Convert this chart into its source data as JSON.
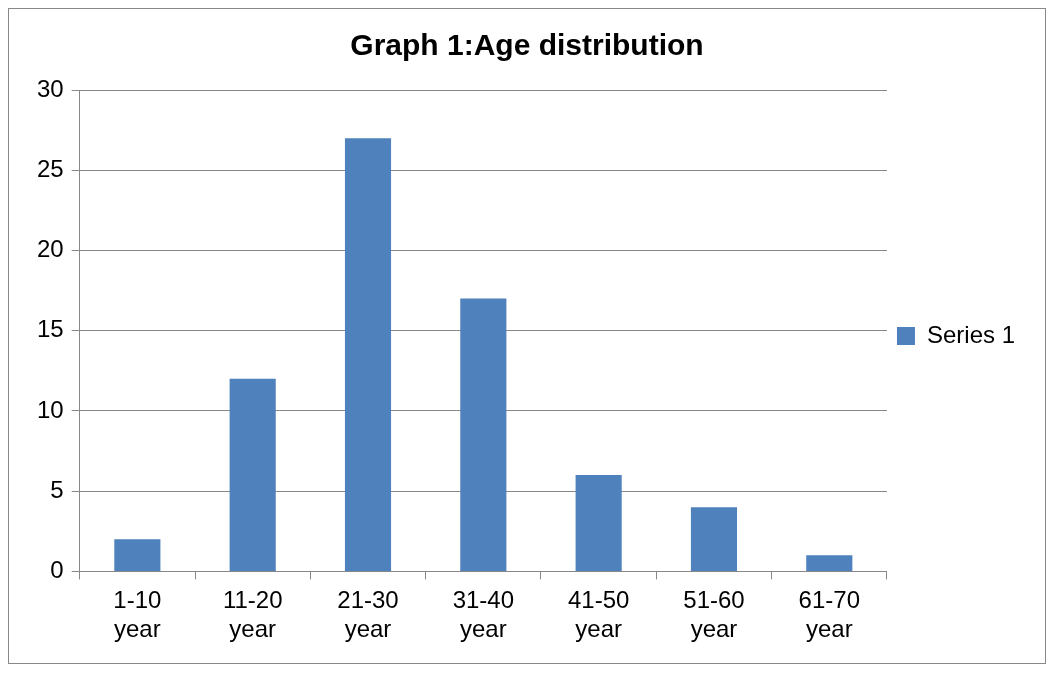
{
  "chart_data": {
    "type": "bar",
    "title": "Graph 1:Age distribution",
    "categories": [
      "1-10 year",
      "11-20 year",
      "21-30 year",
      "31-40 year",
      "41-50 year",
      "51-60 year",
      "61-70 year"
    ],
    "series": [
      {
        "name": "Series 1",
        "color": "#4f81bd",
        "values": [
          2,
          12,
          27,
          17,
          6,
          4,
          1
        ]
      }
    ],
    "ylim": [
      0,
      30
    ],
    "yticks": [
      0,
      5,
      10,
      15,
      20,
      25,
      30
    ],
    "grid": "y",
    "legend": "right"
  }
}
